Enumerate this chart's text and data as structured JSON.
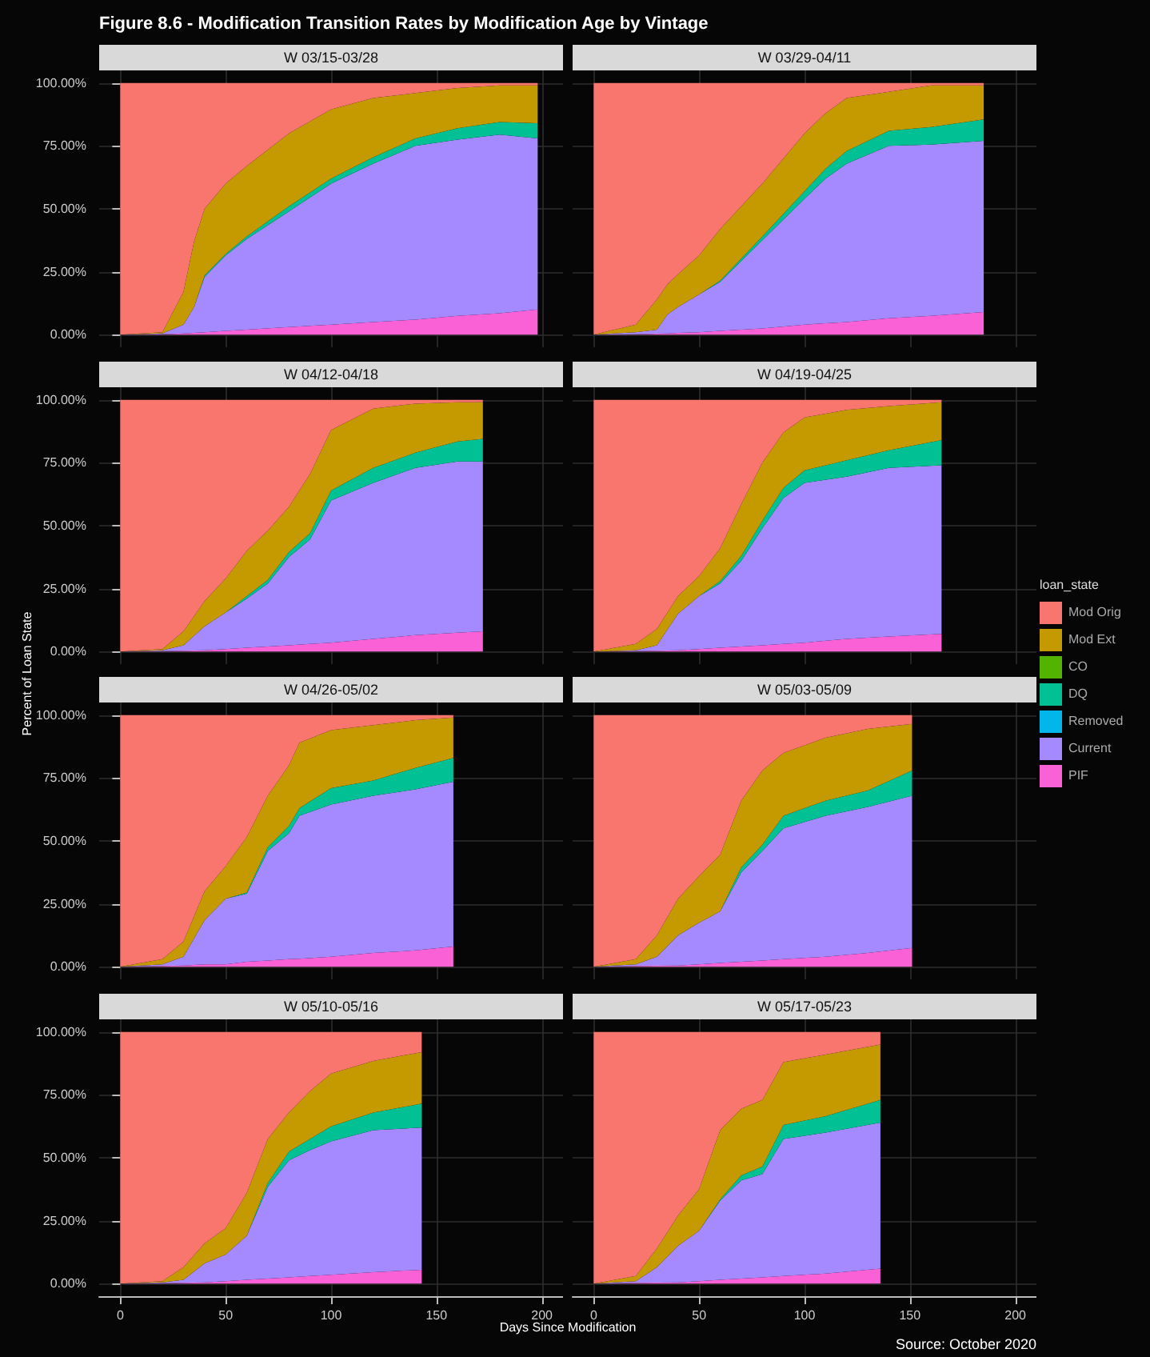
{
  "chart_data": [
    {
      "type": "area",
      "title": "Figure 8.6 - Modification Transition Rates by Modification Age by Vintage",
      "subtitle": "W 03/15-03/28",
      "legend_title": "loan_state",
      "legend": "right",
      "stacked": true,
      "grid": true,
      "tick_labels": "y",
      "xlim": [
        -10,
        210
      ],
      "xticks": [
        0,
        50,
        100,
        150,
        200
      ],
      "ylim": [
        -5,
        105
      ],
      "yticks": [
        {
          "value": 0,
          "label": "0.00%"
        },
        {
          "value": 25,
          "label": "25.00%"
        },
        {
          "value": 50,
          "label": "50.00%"
        },
        {
          "value": 75,
          "label": "75.00%"
        },
        {
          "value": 100,
          "label": "100.00%"
        }
      ],
      "x": [
        0,
        20,
        30,
        35,
        40,
        50,
        60,
        80,
        100,
        120,
        140,
        160,
        180,
        198
      ],
      "series": [
        {
          "name": "PIF",
          "color": "#fb61d7",
          "values": [
            0,
            0.2,
            0.5,
            0.7,
            1,
            1.5,
            2,
            3,
            4,
            5,
            6,
            7.5,
            8.5,
            10
          ]
        },
        {
          "name": "Current",
          "color": "#a58aff",
          "values": [
            0,
            0.3,
            3.5,
            10.3,
            22,
            30,
            36,
            46,
            56,
            63,
            69,
            70,
            71,
            68
          ]
        },
        {
          "name": "Removed",
          "color": "#00b6eb",
          "values": [
            null,
            null,
            null,
            null,
            null,
            null,
            null,
            null,
            null,
            null,
            null,
            null,
            null,
            null
          ]
        },
        {
          "name": "DQ",
          "color": "#00c094",
          "values": [
            0,
            0,
            0,
            0,
            0.5,
            0.5,
            1,
            2,
            2,
            2.5,
            3,
            4.5,
            5,
            6
          ]
        },
        {
          "name": "CO",
          "color": "#53b400",
          "values": [
            null,
            null,
            null,
            null,
            null,
            null,
            null,
            null,
            null,
            null,
            null,
            null,
            null,
            null
          ]
        },
        {
          "name": "Mod Ext",
          "color": "#c49a00",
          "values": [
            0,
            0.5,
            13,
            26,
            26.5,
            28,
            28,
            29,
            27.5,
            23.5,
            18,
            16,
            14.5,
            15
          ]
        },
        {
          "name": "Mod Orig",
          "color": "#f8766d",
          "values": [
            100,
            99,
            83,
            63,
            50,
            40,
            33,
            20,
            10.5,
            6,
            4,
            2,
            1,
            1
          ]
        }
      ]
    },
    {
      "type": "area",
      "subtitle": "W 03/29-04/11",
      "stacked": true,
      "grid": true,
      "tick_labels": false,
      "xlim": [
        -10,
        210
      ],
      "xticks": [
        0,
        50,
        100,
        150,
        200
      ],
      "ylim": [
        -5,
        105
      ],
      "yticks": [
        {
          "value": 0,
          "label": null
        },
        {
          "value": 25,
          "label": null
        },
        {
          "value": 50,
          "label": null
        },
        {
          "value": 75,
          "label": null
        },
        {
          "value": 100,
          "label": null
        }
      ],
      "x": [
        0,
        20,
        30,
        35,
        40,
        50,
        60,
        80,
        100,
        110,
        120,
        140,
        160,
        185
      ],
      "series": [
        {
          "color": "#fb61d7",
          "values": [
            0,
            0.2,
            0.4,
            0.5,
            0.7,
            1,
            1.5,
            2.5,
            4,
            4.5,
            5,
            6.5,
            7.5,
            9
          ]
        },
        {
          "color": "#a58aff",
          "values": [
            0,
            0.8,
            1.6,
            7.5,
            10.3,
            15,
            19.5,
            35,
            50,
            57.5,
            63,
            68.5,
            68,
            68
          ]
        },
        {
          "color": "#00b6eb",
          "values": [
            null,
            null,
            null,
            null,
            null,
            null,
            null,
            null,
            null,
            null,
            null,
            null,
            null,
            null
          ]
        },
        {
          "color": "#00c094",
          "values": [
            0,
            0,
            0,
            0,
            0,
            0,
            0.5,
            1.5,
            3,
            4,
            5,
            6,
            7,
            8.5
          ]
        },
        {
          "color": "#53b400",
          "values": [
            null,
            null,
            null,
            null,
            null,
            null,
            null,
            null,
            null,
            null,
            null,
            null,
            null,
            null
          ]
        },
        {
          "color": "#c49a00",
          "values": [
            0,
            3,
            12,
            12,
            13,
            15.5,
            20.5,
            21,
            23,
            22,
            21,
            15.5,
            16.5,
            13.5
          ]
        },
        {
          "color": "#f8766d",
          "values": [
            100,
            96,
            86,
            80,
            76,
            68.5,
            58,
            40,
            20,
            12,
            6,
            3.5,
            1,
            1
          ]
        }
      ]
    },
    {
      "type": "area",
      "subtitle": "W 04/12-04/18",
      "ylabel": "Percent of Loan State",
      "stacked": true,
      "grid": true,
      "tick_labels": "y",
      "xlim": [
        -10,
        210
      ],
      "xticks": [
        0,
        50,
        100,
        150,
        200
      ],
      "ylim": [
        -5,
        105
      ],
      "yticks": [
        {
          "value": 0,
          "label": "0.00%"
        },
        {
          "value": 25,
          "label": "25.00%"
        },
        {
          "value": 50,
          "label": "50.00%"
        },
        {
          "value": 75,
          "label": "75.00%"
        },
        {
          "value": 100,
          "label": "100.00%"
        }
      ],
      "x": [
        0,
        20,
        30,
        40,
        50,
        60,
        70,
        80,
        90,
        100,
        120,
        140,
        160,
        172
      ],
      "series": [
        {
          "color": "#fb61d7",
          "values": [
            0,
            0.2,
            0.3,
            0.5,
            1,
            1.5,
            2,
            2.5,
            3,
            3.5,
            5,
            6.5,
            7.5,
            8
          ]
        },
        {
          "color": "#a58aff",
          "values": [
            0,
            0.3,
            2.2,
            9.5,
            14.5,
            19.5,
            25,
            35,
            41.5,
            56.5,
            62,
            66.5,
            68,
            67.5
          ]
        },
        {
          "color": "#00b6eb",
          "values": [
            null,
            null,
            null,
            null,
            null,
            null,
            null,
            null,
            null,
            null,
            null,
            null,
            null,
            null
          ]
        },
        {
          "color": "#00c094",
          "values": [
            0,
            0,
            0,
            0,
            0,
            1,
            1.5,
            2,
            2.5,
            4,
            6,
            6,
            8,
            9
          ]
        },
        {
          "color": "#53b400",
          "values": [
            null,
            null,
            null,
            null,
            null,
            null,
            null,
            null,
            null,
            null,
            null,
            null,
            null,
            null
          ]
        },
        {
          "color": "#c49a00",
          "values": [
            0,
            0.5,
            5.5,
            10,
            13.5,
            18,
            19.5,
            18,
            23.5,
            24,
            23.5,
            19.5,
            15.5,
            14.5
          ]
        },
        {
          "color": "#f8766d",
          "values": [
            100,
            99,
            92,
            80,
            71,
            60,
            52,
            42.5,
            29.5,
            12,
            3.5,
            1.5,
            1,
            1
          ]
        }
      ]
    },
    {
      "type": "area",
      "subtitle": "W 04/19-04/25",
      "stacked": true,
      "grid": true,
      "tick_labels": false,
      "xlim": [
        -10,
        210
      ],
      "xticks": [
        0,
        50,
        100,
        150,
        200
      ],
      "ylim": [
        -5,
        105
      ],
      "yticks": [
        {
          "value": 0,
          "label": null
        },
        {
          "value": 25,
          "label": null
        },
        {
          "value": 50,
          "label": null
        },
        {
          "value": 75,
          "label": null
        },
        {
          "value": 100,
          "label": null
        }
      ],
      "x": [
        0,
        20,
        30,
        40,
        50,
        60,
        70,
        80,
        90,
        100,
        120,
        140,
        165
      ],
      "series": [
        {
          "color": "#fb61d7",
          "values": [
            0,
            0.2,
            0.3,
            0.5,
            1,
            1.5,
            2,
            2.5,
            3,
            3.5,
            5,
            6,
            7
          ]
        },
        {
          "color": "#a58aff",
          "values": [
            0,
            0.3,
            2.2,
            14.5,
            21,
            25.5,
            34,
            46.5,
            58,
            63.5,
            64.5,
            67,
            67
          ]
        },
        {
          "color": "#00b6eb",
          "values": [
            null,
            null,
            null,
            null,
            null,
            null,
            null,
            null,
            null,
            null,
            null,
            null,
            null
          ]
        },
        {
          "color": "#00c094",
          "values": [
            0,
            0,
            0,
            0,
            0,
            1,
            2,
            3,
            4,
            5,
            6.5,
            7,
            10
          ]
        },
        {
          "color": "#53b400",
          "values": [
            null,
            null,
            null,
            null,
            null,
            null,
            null,
            null,
            null,
            null,
            null,
            null,
            null
          ]
        },
        {
          "color": "#c49a00",
          "values": [
            0,
            2.5,
            6.5,
            7,
            8,
            13,
            20.5,
            23,
            22,
            21,
            20,
            17.5,
            15
          ]
        },
        {
          "color": "#f8766d",
          "values": [
            100,
            97,
            91,
            78,
            70,
            59,
            41.5,
            25,
            13,
            7,
            4,
            2.5,
            1
          ]
        }
      ]
    },
    {
      "type": "area",
      "subtitle": "W 04/26-05/02",
      "stacked": true,
      "grid": true,
      "tick_labels": "y",
      "xlim": [
        -10,
        210
      ],
      "xticks": [
        0,
        50,
        100,
        150,
        200
      ],
      "ylim": [
        -5,
        105
      ],
      "yticks": [
        {
          "value": 0,
          "label": "0.00%"
        },
        {
          "value": 25,
          "label": "25.00%"
        },
        {
          "value": 50,
          "label": "50.00%"
        },
        {
          "value": 75,
          "label": "75.00%"
        },
        {
          "value": 100,
          "label": "100.00%"
        }
      ],
      "x": [
        0,
        20,
        30,
        40,
        50,
        60,
        70,
        80,
        85,
        100,
        120,
        140,
        158
      ],
      "series": [
        {
          "color": "#fb61d7",
          "values": [
            0,
            0.3,
            0.5,
            1,
            1,
            2,
            2.5,
            3,
            3.2,
            4,
            5.5,
            6.5,
            8
          ]
        },
        {
          "color": "#a58aff",
          "values": [
            0,
            0.7,
            3.5,
            17.5,
            26,
            27,
            43.5,
            50,
            56.8,
            60.5,
            62.5,
            64,
            65.5
          ]
        },
        {
          "color": "#00b6eb",
          "values": [
            null,
            null,
            null,
            null,
            null,
            null,
            null,
            null,
            null,
            null,
            null,
            null,
            null
          ]
        },
        {
          "color": "#00c094",
          "values": [
            0,
            0,
            0,
            0,
            0,
            0.5,
            1.5,
            3,
            3,
            6.5,
            6,
            8.5,
            9.5
          ]
        },
        {
          "color": "#53b400",
          "values": [
            null,
            null,
            null,
            null,
            null,
            null,
            null,
            null,
            null,
            null,
            null,
            null,
            null
          ]
        },
        {
          "color": "#c49a00",
          "values": [
            0,
            2,
            6,
            11.5,
            13,
            22,
            20.5,
            24,
            26,
            23,
            22,
            19,
            16
          ]
        },
        {
          "color": "#f8766d",
          "values": [
            100,
            97,
            90,
            70,
            60,
            48.5,
            32,
            20,
            11,
            6,
            4,
            2,
            1
          ]
        }
      ]
    },
    {
      "type": "area",
      "subtitle": "W 05/03-05/09",
      "stacked": true,
      "grid": true,
      "tick_labels": false,
      "xlim": [
        -10,
        210
      ],
      "xticks": [
        0,
        50,
        100,
        150,
        200
      ],
      "ylim": [
        -5,
        105
      ],
      "yticks": [
        {
          "value": 0,
          "label": null
        },
        {
          "value": 25,
          "label": null
        },
        {
          "value": 50,
          "label": null
        },
        {
          "value": 75,
          "label": null
        },
        {
          "value": 100,
          "label": null
        }
      ],
      "x": [
        0,
        20,
        30,
        40,
        50,
        60,
        70,
        80,
        90,
        110,
        130,
        151
      ],
      "series": [
        {
          "color": "#fb61d7",
          "values": [
            0,
            0.3,
            0.4,
            0.5,
            1,
            1.5,
            2,
            2.5,
            3,
            4,
            5.5,
            7.5
          ]
        },
        {
          "color": "#a58aff",
          "values": [
            0,
            0.7,
            3.6,
            12,
            16.5,
            20.5,
            35.5,
            43.5,
            52,
            56,
            58,
            60.5
          ]
        },
        {
          "color": "#00b6eb",
          "values": [
            null,
            null,
            null,
            null,
            null,
            null,
            null,
            null,
            null,
            null,
            null,
            null
          ]
        },
        {
          "color": "#00c094",
          "values": [
            0,
            0,
            0,
            0,
            0,
            0,
            2,
            2.5,
            5,
            6,
            6.5,
            10
          ]
        },
        {
          "color": "#53b400",
          "values": [
            null,
            null,
            null,
            null,
            null,
            null,
            null,
            null,
            null,
            null,
            null,
            null
          ]
        },
        {
          "color": "#c49a00",
          "values": [
            0,
            2,
            8.5,
            14.5,
            18.5,
            22.5,
            26.5,
            29.5,
            25,
            25,
            24.5,
            18.5
          ]
        },
        {
          "color": "#f8766d",
          "values": [
            100,
            97,
            87.5,
            73,
            64,
            55.5,
            34,
            22,
            15,
            9,
            5.5,
            3.5
          ]
        }
      ]
    },
    {
      "type": "area",
      "subtitle": "W 05/10-05/16",
      "xlabel": "Days Since Modification",
      "stacked": true,
      "grid": true,
      "xlim": [
        -10,
        210
      ],
      "xticks": [
        0,
        50,
        100,
        150,
        200
      ],
      "ylim": [
        -5,
        105
      ],
      "yticks": [
        {
          "value": 0,
          "label": "0.00%"
        },
        {
          "value": 25,
          "label": "25.00%"
        },
        {
          "value": 50,
          "label": "50.00%"
        },
        {
          "value": 75,
          "label": "75.00%"
        },
        {
          "value": 100,
          "label": "100.00%"
        }
      ],
      "x": [
        0,
        20,
        30,
        40,
        50,
        60,
        70,
        80,
        90,
        100,
        120,
        143
      ],
      "series": [
        {
          "color": "#fb61d7",
          "values": [
            0,
            0.2,
            0.3,
            0.5,
            1,
            1.5,
            2,
            2.5,
            3,
            3.5,
            4.5,
            5.5
          ]
        },
        {
          "color": "#a58aff",
          "values": [
            0,
            0.3,
            1.2,
            7.5,
            10.5,
            17.5,
            36.5,
            46.5,
            50,
            53,
            56.5,
            56.5
          ]
        },
        {
          "color": "#00b6eb",
          "values": [
            null,
            null,
            null,
            null,
            null,
            null,
            null,
            null,
            null,
            null,
            null,
            null
          ]
        },
        {
          "color": "#00c094",
          "values": [
            0,
            0,
            0,
            0,
            0,
            0,
            1.5,
            3.5,
            4.5,
            6,
            7,
            9.5
          ]
        },
        {
          "color": "#53b400",
          "values": [
            null,
            null,
            null,
            null,
            null,
            null,
            null,
            null,
            null,
            null,
            null,
            null
          ]
        },
        {
          "color": "#c49a00",
          "values": [
            0,
            0.5,
            5,
            8,
            10.5,
            17,
            17.5,
            15.5,
            19,
            21,
            20.5,
            20.5
          ]
        },
        {
          "color": "#f8766d",
          "values": [
            100,
            99,
            93.5,
            84,
            78,
            64,
            42.5,
            32,
            23.5,
            16.5,
            11.5,
            8
          ]
        }
      ]
    },
    {
      "type": "area",
      "subtitle": "W 05/17-05/23",
      "annotations": [
        "Source: October 2020"
      ],
      "stacked": true,
      "grid": true,
      "tick_labels": "x",
      "xlim": [
        -10,
        210
      ],
      "xticks": [
        0,
        50,
        100,
        150,
        200
      ],
      "ylim": [
        -5,
        105
      ],
      "yticks": [
        {
          "value": 0,
          "label": null
        },
        {
          "value": 25,
          "label": null
        },
        {
          "value": 50,
          "label": null
        },
        {
          "value": 75,
          "label": null
        },
        {
          "value": 100,
          "label": null
        }
      ],
      "x": [
        0,
        20,
        30,
        40,
        50,
        60,
        70,
        80,
        90,
        110,
        136
      ],
      "series": [
        {
          "color": "#fb61d7",
          "values": [
            0,
            0.3,
            0.4,
            0.5,
            1,
            1.5,
            2,
            2.5,
            3,
            4,
            6
          ]
        },
        {
          "color": "#a58aff",
          "values": [
            0,
            0.7,
            6.1,
            14.5,
            20,
            31.5,
            39,
            41,
            54.5,
            56,
            58
          ]
        },
        {
          "color": "#00b6eb",
          "values": [
            null,
            null,
            null,
            null,
            null,
            null,
            null,
            null,
            null,
            null,
            null
          ]
        },
        {
          "color": "#00c094",
          "values": [
            0,
            0,
            0,
            0,
            0,
            0.5,
            2,
            3,
            5.5,
            6.5,
            9
          ]
        },
        {
          "color": "#53b400",
          "values": [
            null,
            null,
            null,
            null,
            null,
            null,
            null,
            null,
            null,
            null,
            null
          ]
        },
        {
          "color": "#c49a00",
          "values": [
            0,
            2,
            7.5,
            12,
            16.5,
            27.5,
            26.5,
            26.5,
            25,
            24.5,
            22
          ]
        },
        {
          "color": "#f8766d",
          "values": [
            100,
            97,
            86,
            73,
            62.5,
            39,
            30.5,
            27,
            12,
            9,
            5
          ]
        }
      ]
    }
  ]
}
